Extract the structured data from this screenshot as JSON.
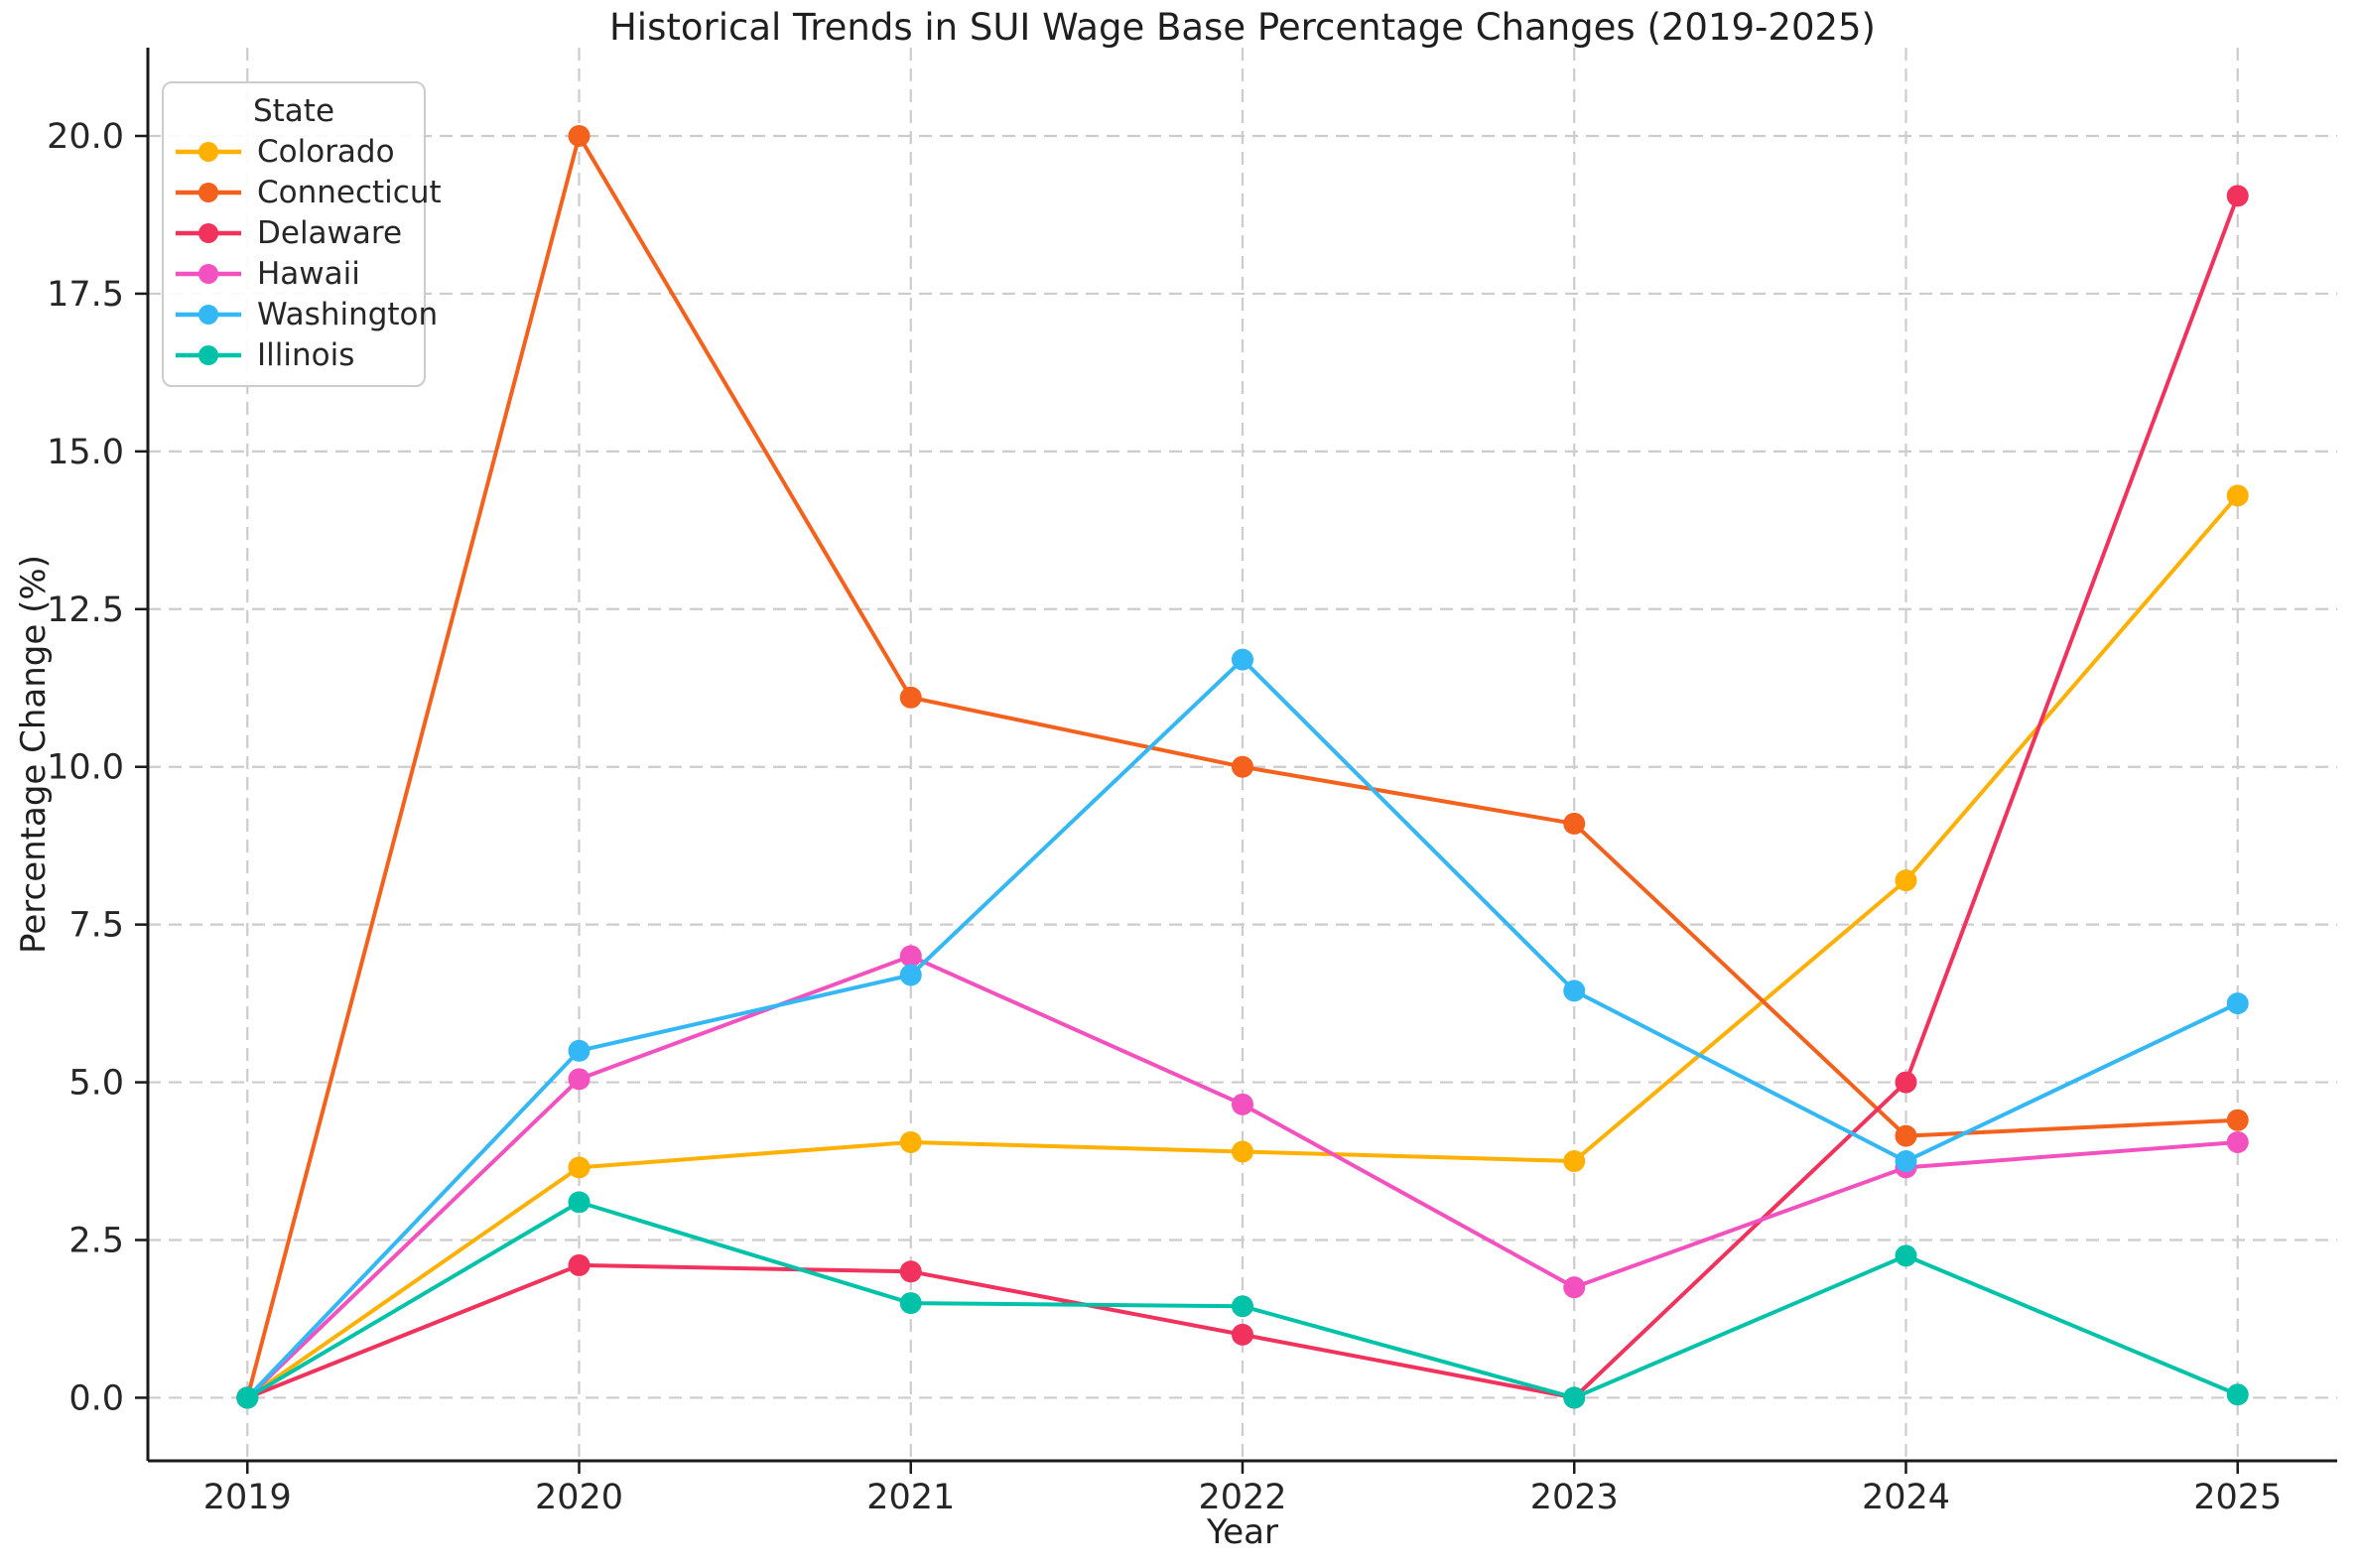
{
  "page": {
    "background": "#ffffff"
  },
  "chart_data": {
    "type": "line",
    "title": "Historical Trends in SUI Wage Base Percentage Changes (2019-2025)",
    "xlabel": "Year",
    "ylabel": "Percentage Change (%)",
    "legend_title": "State",
    "legend_position": "upper-left",
    "grid": "dashed-both-axes",
    "x": [
      2019,
      2020,
      2021,
      2022,
      2023,
      2024,
      2025
    ],
    "x_tick_labels": [
      "2019",
      "2020",
      "2021",
      "2022",
      "2023",
      "2024",
      "2025"
    ],
    "y_ticks": [
      0.0,
      2.5,
      5.0,
      7.5,
      10.0,
      12.5,
      15.0,
      17.5,
      20.0
    ],
    "y_tick_labels": [
      "0.0",
      "2.5",
      "5.0",
      "7.5",
      "10.0",
      "12.5",
      "15.0",
      "17.5",
      "20.0"
    ],
    "xlim": [
      2018.7,
      2025.3
    ],
    "ylim": [
      -1.0,
      21.4
    ],
    "series": [
      {
        "name": "Colorado",
        "color": "#FFB000",
        "values": [
          0.0,
          3.65,
          4.05,
          3.9,
          3.75,
          8.2,
          14.3
        ]
      },
      {
        "name": "Connecticut",
        "color": "#F4611D",
        "values": [
          0.0,
          20.0,
          11.1,
          10.0,
          9.1,
          4.15,
          4.4
        ]
      },
      {
        "name": "Delaware",
        "color": "#F0325C",
        "values": [
          0.0,
          2.1,
          2.0,
          1.0,
          0.0,
          5.0,
          19.05
        ]
      },
      {
        "name": "Hawaii",
        "color": "#F351C0",
        "values": [
          0.0,
          5.05,
          7.0,
          4.65,
          1.75,
          3.65,
          4.05
        ]
      },
      {
        "name": "Washington",
        "color": "#33B8F5",
        "values": [
          0.0,
          5.5,
          6.7,
          11.7,
          6.45,
          3.75,
          6.25
        ]
      },
      {
        "name": "Illinois",
        "color": "#00C2A8",
        "values": [
          0.0,
          3.1,
          1.5,
          1.45,
          0.0,
          2.25,
          0.05
        ]
      }
    ],
    "styles": {
      "grid_color": "#cccccc",
      "axis_color": "#1a1a1a",
      "text_color": "#262626",
      "line_width": 4,
      "marker_radius": 11
    }
  }
}
